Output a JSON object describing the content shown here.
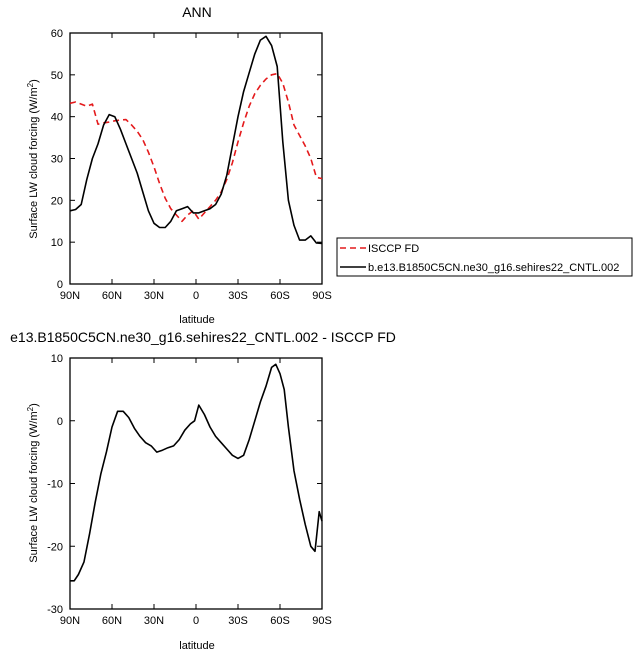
{
  "chart_data": [
    {
      "type": "line",
      "title": "ANN",
      "xlabel": "latitude",
      "ylabel_main": "Surface LW cloud forcing (W/m",
      "ylabel_sup": "2",
      "ylabel_close": ")",
      "xlim": [
        90,
        -90
      ],
      "ylim": [
        0,
        60
      ],
      "x_tick_values": [
        90,
        60,
        30,
        0,
        -30,
        -60,
        -90
      ],
      "x_tick_labels": [
        "90N",
        "60N",
        "30N",
        "0",
        "30S",
        "60S",
        "90S"
      ],
      "y_tick_values": [
        0,
        10,
        20,
        30,
        40,
        50,
        60
      ],
      "y_tick_labels": [
        "0",
        "10",
        "20",
        "30",
        "40",
        "50",
        "60"
      ],
      "grid": false,
      "legend_placement": "right",
      "series": [
        {
          "name": "ISCCP FD",
          "color": "#e41a1c",
          "dash": "dashed",
          "x": [
            90,
            86,
            82,
            78,
            74,
            70,
            66,
            62,
            58,
            54,
            50,
            46,
            42,
            38,
            34,
            30,
            26,
            22,
            18,
            14,
            10,
            6,
            2,
            -2,
            -6,
            -10,
            -14,
            -18,
            -22,
            -26,
            -30,
            -34,
            -38,
            -42,
            -46,
            -50,
            -54,
            -58,
            -62,
            -66,
            -70,
            -74,
            -78,
            -82,
            -86,
            -90
          ],
          "values": [
            43.2,
            43.5,
            43,
            42.5,
            43,
            38.2,
            38.5,
            38.7,
            39,
            39.2,
            39.3,
            38,
            36.5,
            34.5,
            31.5,
            28,
            24,
            20.5,
            18,
            16.5,
            15,
            16.5,
            17.5,
            15.5,
            17,
            18.5,
            20,
            22,
            25,
            29,
            34,
            38.5,
            42.5,
            45.5,
            47.5,
            49,
            50,
            50.3,
            48,
            43.5,
            38,
            35.5,
            33,
            30,
            25.5,
            25.2
          ]
        },
        {
          "name": "b.e13.B1850C5CN.ne30_g16.sehires22_CNTL.002",
          "color": "#000000",
          "dash": "solid",
          "x": [
            90,
            86,
            82,
            78,
            74,
            70,
            66,
            62,
            58,
            54,
            50,
            46,
            42,
            38,
            34,
            30,
            26,
            22,
            18,
            14,
            10,
            6,
            2,
            -2,
            -6,
            -10,
            -14,
            -18,
            -22,
            -26,
            -30,
            -34,
            -38,
            -42,
            -46,
            -50,
            -54,
            -58,
            -62,
            -66,
            -70,
            -74,
            -78,
            -82,
            -86,
            -90
          ],
          "values": [
            17.5,
            17.8,
            19,
            25,
            30,
            33.5,
            38,
            40.5,
            40,
            37,
            33.5,
            30,
            26.5,
            22,
            17.5,
            14.5,
            13.5,
            13.5,
            15,
            17.5,
            18,
            18.5,
            17,
            17,
            17.5,
            18,
            19,
            21.5,
            26,
            33,
            40,
            46,
            50.5,
            55,
            58.3,
            59.2,
            57,
            52,
            34,
            20,
            14,
            10.5,
            10.5,
            11.5,
            9.8,
            9.7
          ]
        }
      ]
    },
    {
      "type": "line",
      "title": "e13.B1850C5CN.ne30_g16.sehires22_CNTL.002 - ISCCP FD",
      "xlabel": "latitude",
      "ylabel_main": "Surface LW cloud forcing (W/m",
      "ylabel_sup": "2",
      "ylabel_close": ")",
      "xlim": [
        90,
        -90
      ],
      "ylim": [
        -30,
        10
      ],
      "x_tick_values": [
        90,
        60,
        30,
        0,
        -30,
        -60,
        -90
      ],
      "x_tick_labels": [
        "90N",
        "60N",
        "30N",
        "0",
        "30S",
        "60S",
        "90S"
      ],
      "y_tick_values": [
        -30,
        -20,
        -10,
        0,
        10
      ],
      "y_tick_labels": [
        "-30",
        "-20",
        "-10",
        "0",
        "10"
      ],
      "grid": false,
      "series": [
        {
          "color": "#000000",
          "dash": "solid",
          "x": [
            90,
            87,
            84,
            80,
            76,
            72,
            68,
            64,
            60,
            56,
            52,
            48,
            44,
            40,
            36,
            32,
            28,
            24,
            20,
            16,
            12,
            8,
            4,
            1,
            -2,
            -6,
            -10,
            -14,
            -18,
            -22,
            -26,
            -30,
            -34,
            -38,
            -42,
            -46,
            -50,
            -54,
            -57,
            -60,
            -63,
            -66,
            -70,
            -74,
            -78,
            -82,
            -85,
            -88,
            -90
          ],
          "values": [
            -25.5,
            -25.5,
            -24.5,
            -22.5,
            -18,
            -13,
            -8.5,
            -5,
            -1,
            1.5,
            1.5,
            0.5,
            -1.2,
            -2.5,
            -3.5,
            -4,
            -5,
            -4.7,
            -4.3,
            -4,
            -3,
            -1.5,
            -0.5,
            0,
            2.5,
            1,
            -1,
            -2.5,
            -3.5,
            -4.5,
            -5.5,
            -6,
            -5.5,
            -3,
            0,
            3,
            5.5,
            8.5,
            9,
            7.5,
            5,
            -1,
            -8,
            -12.5,
            -16.5,
            -20,
            -20.8,
            -14.5,
            -16
          ]
        }
      ]
    }
  ]
}
